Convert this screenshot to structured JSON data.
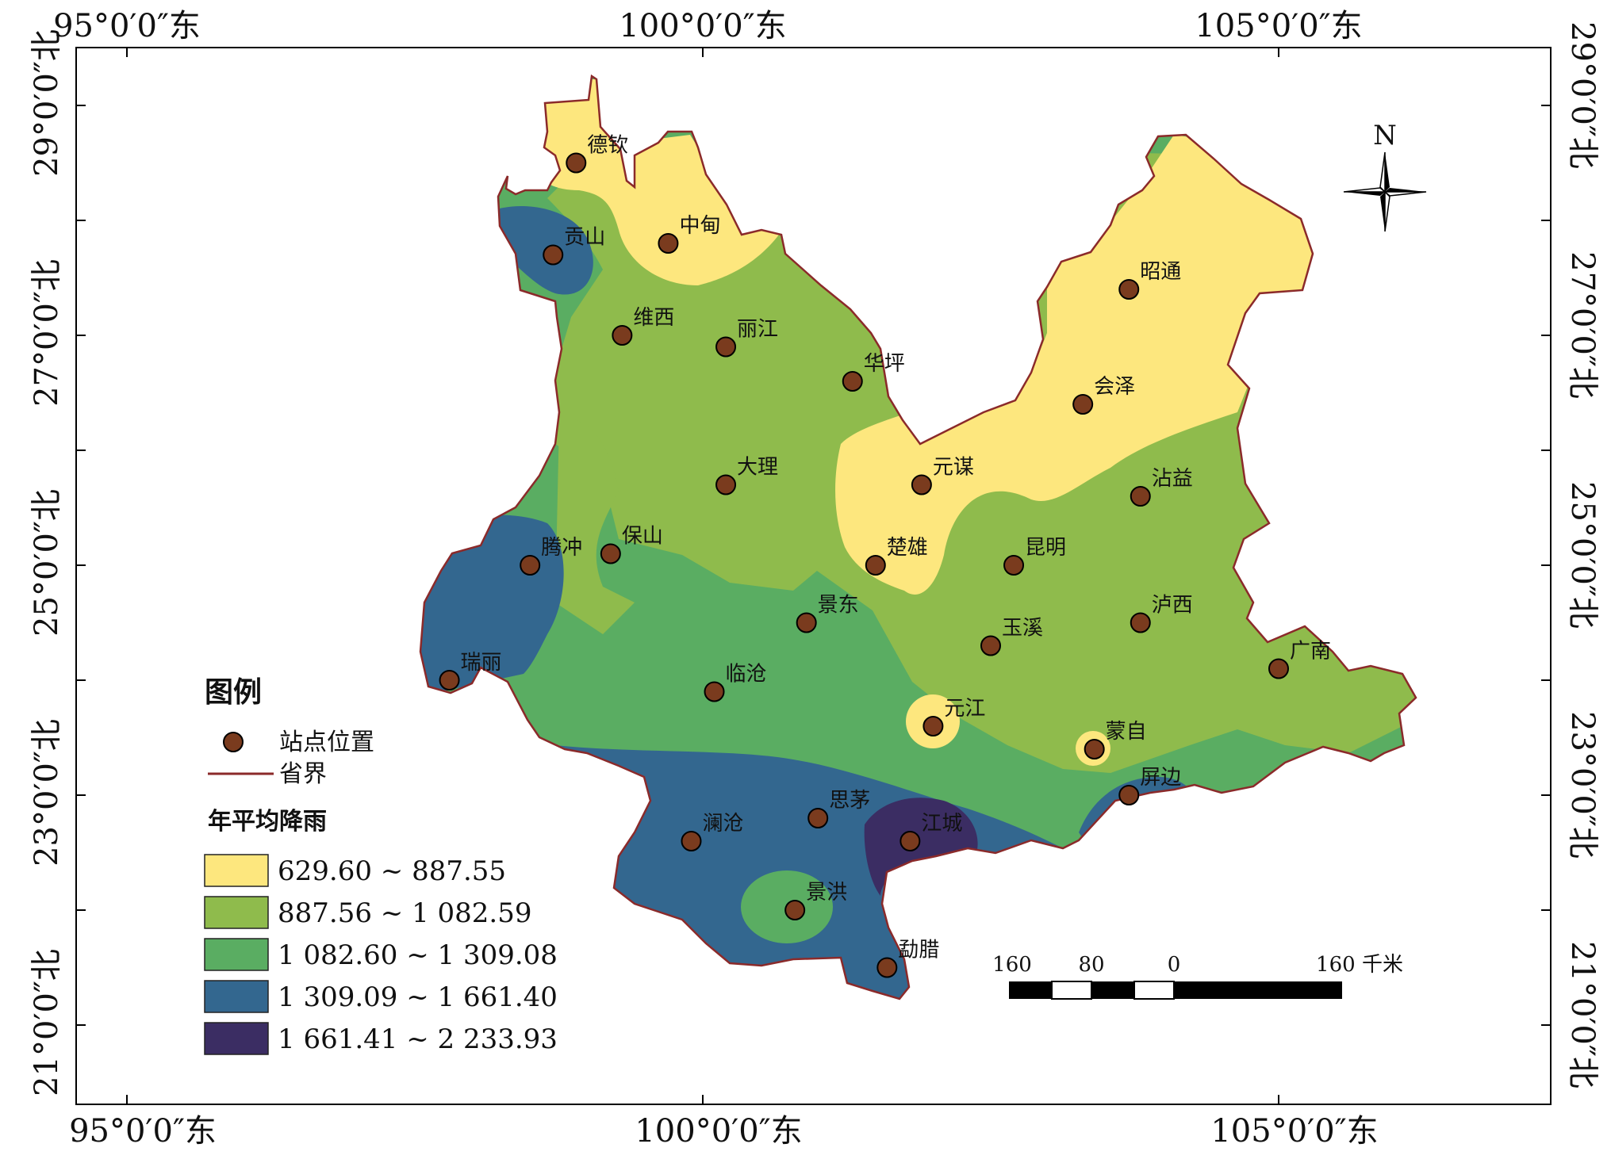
{
  "map": {
    "top_lon_labels": [
      "95°0′0″东",
      "100°0′0″东",
      "105°0′0″东"
    ],
    "bottom_lon_labels": [
      "95°0′0″东",
      "100°0′0″东",
      "105°0′0″东"
    ],
    "left_lat_labels": [
      "29°0′0″北",
      "27°0′0″北",
      "25°0′0″北",
      "23°0′0″北",
      "21°0′0″北"
    ],
    "right_lat_labels": [
      "29°0′0″北",
      "27°0′0″北",
      "25°0′0″北",
      "23°0′0″北",
      "21°0′0″北"
    ],
    "north_label": "N"
  },
  "stations": [
    {
      "name": "德钦",
      "lon": 98.9,
      "lat": 28.5
    },
    {
      "name": "贡山",
      "lon": 98.7,
      "lat": 27.7
    },
    {
      "name": "中甸",
      "lon": 99.7,
      "lat": 27.8
    },
    {
      "name": "维西",
      "lon": 99.3,
      "lat": 27.0
    },
    {
      "name": "丽江",
      "lon": 100.2,
      "lat": 26.9
    },
    {
      "name": "华坪",
      "lon": 101.3,
      "lat": 26.6
    },
    {
      "name": "昭通",
      "lon": 103.7,
      "lat": 27.4
    },
    {
      "name": "会泽",
      "lon": 103.3,
      "lat": 26.4
    },
    {
      "name": "元谋",
      "lon": 101.9,
      "lat": 25.7
    },
    {
      "name": "大理",
      "lon": 100.2,
      "lat": 25.7
    },
    {
      "name": "沾益",
      "lon": 103.8,
      "lat": 25.6
    },
    {
      "name": "腾冲",
      "lon": 98.5,
      "lat": 25.0
    },
    {
      "name": "保山",
      "lon": 99.2,
      "lat": 25.1
    },
    {
      "name": "楚雄",
      "lon": 101.5,
      "lat": 25.0
    },
    {
      "name": "昆明",
      "lon": 102.7,
      "lat": 25.0
    },
    {
      "name": "景东",
      "lon": 100.9,
      "lat": 24.5
    },
    {
      "name": "泸西",
      "lon": 103.8,
      "lat": 24.5
    },
    {
      "name": "玉溪",
      "lon": 102.5,
      "lat": 24.3
    },
    {
      "name": "瑞丽",
      "lon": 97.8,
      "lat": 24.0
    },
    {
      "name": "临沧",
      "lon": 100.1,
      "lat": 23.9
    },
    {
      "name": "广南",
      "lon": 105.0,
      "lat": 24.1
    },
    {
      "name": "元江",
      "lon": 102.0,
      "lat": 23.6
    },
    {
      "name": "蒙自",
      "lon": 103.4,
      "lat": 23.4
    },
    {
      "name": "屏边",
      "lon": 103.7,
      "lat": 23.0
    },
    {
      "name": "思茅",
      "lon": 101.0,
      "lat": 22.8
    },
    {
      "name": "澜沧",
      "lon": 99.9,
      "lat": 22.6
    },
    {
      "name": "江城",
      "lon": 101.8,
      "lat": 22.6
    },
    {
      "name": "景洪",
      "lon": 100.8,
      "lat": 22.0
    },
    {
      "name": "勐腊",
      "lon": 101.6,
      "lat": 21.5
    }
  ],
  "legend": {
    "title": "图例",
    "station_label": "站点位置",
    "boundary_label": "省界",
    "rain_title": "年平均降雨",
    "classes": [
      {
        "range": "629.60 ~ 887.55",
        "color": "#fde77e"
      },
      {
        "range": "887.56 ~ 1 082.59",
        "color": "#8fbb4c"
      },
      {
        "range": "1 082.60 ~ 1 309.08",
        "color": "#5aad62"
      },
      {
        "range": "1 309.09 ~ 1 661.40",
        "color": "#33678f"
      },
      {
        "range": "1 661.41 ~ 2 233.93",
        "color": "#3b2d63"
      }
    ]
  },
  "scale_bar": {
    "labels": [
      "160",
      "80",
      "0",
      "160 千米"
    ]
  },
  "colors": {
    "boundary": "#8b2a2a",
    "station_fill": "#7a3b1e",
    "frame": "#000000"
  }
}
